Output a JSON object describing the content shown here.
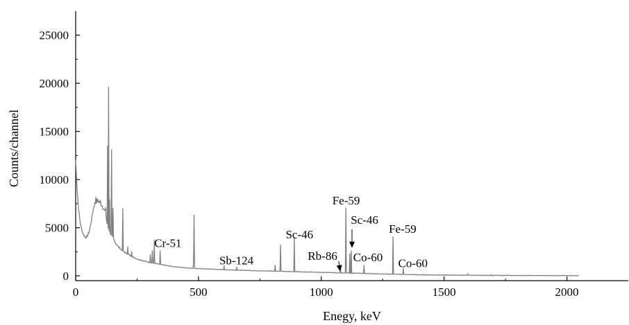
{
  "chart_data": {
    "type": "line",
    "title": "",
    "xlabel": "Enegy, keV",
    "ylabel": "Counts/channel",
    "xlim": [
      0,
      2250
    ],
    "ylim": [
      -500,
      27500
    ],
    "x_ticks": [
      0,
      500,
      1000,
      1500,
      2000
    ],
    "x_tick_labels": [
      "0",
      "500",
      "1000",
      "1500",
      "2000"
    ],
    "y_ticks": [
      0,
      5000,
      10000,
      15000,
      20000,
      25000
    ],
    "y_tick_labels": [
      "0",
      "5000",
      "10000",
      "15000",
      "20000",
      "25000"
    ],
    "grid": false,
    "legend": "none",
    "colors": {
      "line": "#808080",
      "axes": "#000000",
      "text": "#000000"
    },
    "series": [
      {
        "baseline": [
          [
            0,
            12000
          ],
          [
            5,
            9500
          ],
          [
            10,
            7500
          ],
          [
            15,
            6200
          ],
          [
            20,
            5300
          ],
          [
            25,
            4800
          ],
          [
            30,
            4400
          ],
          [
            35,
            4150
          ],
          [
            40,
            4000
          ],
          [
            45,
            4050
          ],
          [
            50,
            4250
          ],
          [
            55,
            4600
          ],
          [
            60,
            5200
          ],
          [
            65,
            5900
          ],
          [
            70,
            6700
          ],
          [
            75,
            7300
          ],
          [
            80,
            7600
          ],
          [
            85,
            7750
          ],
          [
            90,
            7800
          ],
          [
            95,
            7700
          ],
          [
            100,
            7600
          ],
          [
            105,
            7400
          ],
          [
            110,
            7200
          ],
          [
            115,
            6900
          ],
          [
            120,
            6600
          ],
          [
            125,
            5900
          ],
          [
            130,
            5100
          ],
          [
            140,
            4500
          ],
          [
            150,
            4000
          ],
          [
            160,
            3500
          ],
          [
            175,
            3000
          ],
          [
            190,
            2600
          ],
          [
            210,
            2300
          ],
          [
            230,
            2000
          ],
          [
            250,
            1750
          ],
          [
            270,
            1600
          ],
          [
            300,
            1400
          ],
          [
            350,
            1150
          ],
          [
            400,
            950
          ],
          [
            450,
            830
          ],
          [
            500,
            750
          ],
          [
            550,
            700
          ],
          [
            600,
            640
          ],
          [
            650,
            600
          ],
          [
            700,
            560
          ],
          [
            750,
            520
          ],
          [
            800,
            500
          ],
          [
            850,
            460
          ],
          [
            900,
            430
          ],
          [
            950,
            400
          ],
          [
            1000,
            360
          ],
          [
            1050,
            330
          ],
          [
            1100,
            300
          ],
          [
            1150,
            260
          ],
          [
            1200,
            230
          ],
          [
            1250,
            200
          ],
          [
            1300,
            170
          ],
          [
            1350,
            130
          ],
          [
            1400,
            110
          ],
          [
            1500,
            80
          ],
          [
            1600,
            60
          ],
          [
            1700,
            45
          ],
          [
            1800,
            35
          ],
          [
            1900,
            30
          ],
          [
            2000,
            25
          ],
          [
            2048,
            20
          ]
        ],
        "peaks": [
          {
            "energy": 81,
            "height": 8150
          },
          {
            "energy": 89,
            "height": 7950
          },
          {
            "energy": 100,
            "height": 7850
          },
          {
            "energy": 122,
            "height": 7100
          },
          {
            "energy": 129,
            "height": 13500
          },
          {
            "energy": 133,
            "height": 19600
          },
          {
            "energy": 137,
            "height": 7900
          },
          {
            "energy": 146,
            "height": 13100
          },
          {
            "energy": 152,
            "height": 7000
          },
          {
            "energy": 192,
            "height": 7000
          },
          {
            "energy": 211,
            "height": 3000
          },
          {
            "energy": 228,
            "height": 2500
          },
          {
            "energy": 303,
            "height": 2200
          },
          {
            "energy": 312,
            "height": 2600
          },
          {
            "energy": 320,
            "height": 3700
          },
          {
            "energy": 344,
            "height": 2600
          },
          {
            "energy": 480,
            "height": 1500
          },
          {
            "energy": 482,
            "height": 6300
          },
          {
            "energy": 603,
            "height": 1050
          },
          {
            "energy": 656,
            "height": 900
          },
          {
            "energy": 811,
            "height": 1100
          },
          {
            "energy": 834,
            "height": 3200
          },
          {
            "energy": 889,
            "height": 3900
          },
          {
            "energy": 1077,
            "height": 650
          },
          {
            "energy": 1099,
            "height": 7050
          },
          {
            "energy": 1115,
            "height": 2300
          },
          {
            "energy": 1121,
            "height": 2600
          },
          {
            "energy": 1173,
            "height": 1100
          },
          {
            "energy": 1292,
            "height": 4050
          },
          {
            "energy": 1333,
            "height": 800
          },
          {
            "energy": 1596,
            "height": 210
          },
          {
            "energy": 1690,
            "height": 120
          }
        ]
      }
    ],
    "annotations": [
      {
        "text": "Cr-51",
        "x": 320,
        "y": 3000,
        "arrow": false
      },
      {
        "text": "Sb-124",
        "x": 585,
        "y": 1200,
        "arrow": false
      },
      {
        "text": "Sc-46",
        "x": 855,
        "y": 3900,
        "arrow": false
      },
      {
        "text": "Rb-86",
        "x": 945,
        "y": 1650,
        "arrow": true,
        "arrow_to": [
          1077,
          450
        ]
      },
      {
        "text": "Fe-59",
        "x": 1045,
        "y": 7400,
        "arrow": false
      },
      {
        "text": "Sc-46",
        "x": 1120,
        "y": 5400,
        "arrow": true,
        "arrow_to": [
          1125,
          2900
        ]
      },
      {
        "text": "Co-60",
        "x": 1130,
        "y": 1500,
        "arrow": false
      },
      {
        "text": "Fe-59",
        "x": 1275,
        "y": 4450,
        "arrow": false
      },
      {
        "text": "Co-60",
        "x": 1313,
        "y": 900,
        "arrow": false
      }
    ]
  }
}
